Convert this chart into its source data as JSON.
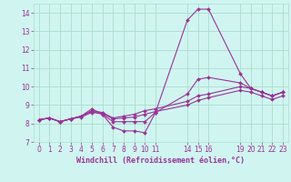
{
  "title": "",
  "xlabel": "Windchill (Refroidissement éolien,°C)",
  "ylabel": "",
  "background_color": "#d0f5f0",
  "grid_color": "#aaddcc",
  "line_color": "#993399",
  "xlim": [
    -0.5,
    23.5
  ],
  "ylim": [
    7,
    14.5
  ],
  "yticks": [
    7,
    8,
    9,
    10,
    11,
    12,
    13,
    14
  ],
  "xticks": [
    0,
    1,
    2,
    3,
    4,
    5,
    6,
    7,
    8,
    9,
    10,
    11,
    14,
    15,
    16,
    19,
    20,
    21,
    22,
    23
  ],
  "series": [
    {
      "x": [
        0,
        1,
        2,
        3,
        4,
        5,
        6,
        7,
        8,
        9,
        10,
        11,
        14,
        15,
        16,
        19,
        20,
        21,
        22,
        23
      ],
      "y": [
        8.2,
        8.3,
        8.1,
        8.25,
        8.4,
        8.8,
        8.5,
        7.8,
        7.6,
        7.6,
        7.5,
        8.6,
        13.6,
        14.2,
        14.2,
        10.7,
        9.9,
        9.7,
        9.5,
        9.7
      ]
    },
    {
      "x": [
        0,
        1,
        2,
        3,
        4,
        5,
        6,
        7,
        8,
        9,
        10,
        11,
        14,
        15,
        16,
        19,
        20,
        21,
        22,
        23
      ],
      "y": [
        8.2,
        8.3,
        8.1,
        8.25,
        8.4,
        8.7,
        8.6,
        8.3,
        8.4,
        8.5,
        8.7,
        8.8,
        9.2,
        9.5,
        9.6,
        10.0,
        9.9,
        9.7,
        9.5,
        9.7
      ]
    },
    {
      "x": [
        0,
        1,
        2,
        3,
        4,
        5,
        6,
        7,
        8,
        9,
        10,
        11,
        14,
        15,
        16,
        19,
        20,
        21,
        22,
        23
      ],
      "y": [
        8.2,
        8.3,
        8.1,
        8.25,
        8.35,
        8.6,
        8.55,
        8.25,
        8.3,
        8.35,
        8.5,
        8.65,
        9.0,
        9.25,
        9.4,
        9.8,
        9.7,
        9.5,
        9.3,
        9.5
      ]
    },
    {
      "x": [
        0,
        1,
        2,
        3,
        4,
        5,
        6,
        7,
        8,
        9,
        10,
        11,
        14,
        15,
        16,
        19,
        20,
        21,
        22,
        23
      ],
      "y": [
        8.2,
        8.3,
        8.1,
        8.25,
        8.4,
        8.65,
        8.5,
        8.1,
        8.1,
        8.1,
        8.1,
        8.6,
        9.6,
        10.4,
        10.5,
        10.2,
        9.9,
        9.7,
        9.5,
        9.7
      ]
    }
  ]
}
